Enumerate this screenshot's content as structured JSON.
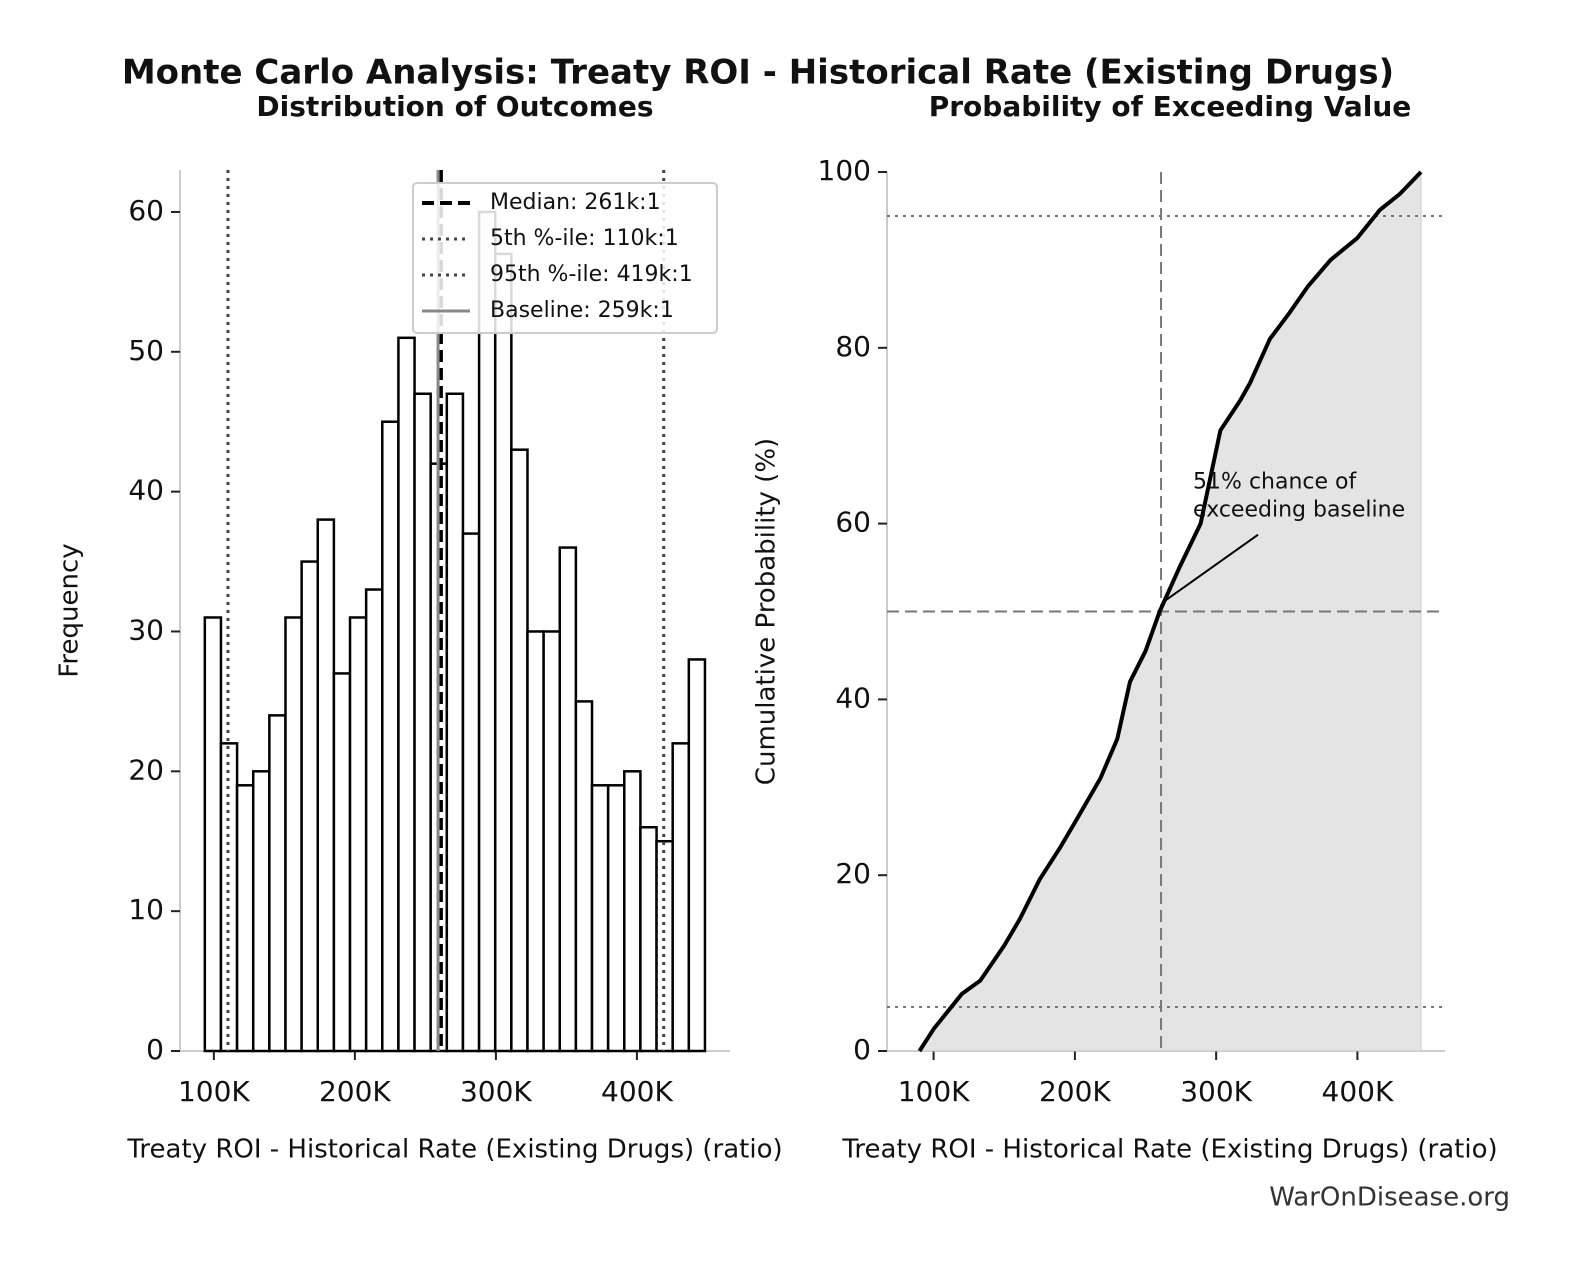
{
  "title": "Monte Carlo Analysis: Treaty ROI - Historical Rate (Existing Drugs)",
  "footer": "WarOnDisease.org",
  "chart_data": [
    {
      "type": "histogram",
      "title": "Distribution of Outcomes",
      "xlabel": "Treaty ROI - Historical Rate (Existing Drugs) (ratio)",
      "ylabel": "Frequency",
      "bins": [
        93600,
        105040,
        116480,
        127920,
        139360,
        150800,
        162240,
        173680,
        185120,
        196560,
        208000,
        219440,
        230880,
        242320,
        253760,
        265200,
        276640,
        288080,
        299520,
        310960,
        322400,
        333840,
        345280,
        356720,
        368160,
        379600,
        391040,
        402480,
        413920,
        425360,
        436800,
        448240
      ],
      "values": [
        31,
        22,
        19,
        20,
        24,
        31,
        35,
        38,
        27,
        31,
        33,
        45,
        51,
        47,
        42,
        47,
        37,
        60,
        57,
        43,
        30,
        30,
        36,
        25,
        19,
        19,
        20,
        16,
        15,
        22,
        28
      ],
      "color": "#ffffff",
      "edgecolor": "#000000",
      "xlim": [
        76000,
        466000
      ],
      "ylim": [
        0,
        63
      ],
      "xticks": [
        {
          "value": 100000,
          "label": "100K"
        },
        {
          "value": 200000,
          "label": "200K"
        },
        {
          "value": 300000,
          "label": "300K"
        },
        {
          "value": 400000,
          "label": "400K"
        }
      ],
      "yticks": [
        0,
        10,
        20,
        30,
        40,
        50,
        60
      ],
      "legend": "upper right",
      "reference_lines": [
        {
          "label": "Median: 261k:1",
          "value": 261000,
          "style": "dashed",
          "color": "#000000"
        },
        {
          "label": "5th %-ile: 110k:1",
          "value": 110000,
          "style": "dotted",
          "color": "#444444"
        },
        {
          "label": "95th %-ile: 419k:1",
          "value": 419000,
          "style": "dotted",
          "color": "#444444"
        },
        {
          "label": "Baseline: 259k:1",
          "value": 259000,
          "style": "solid",
          "color": "#888888"
        }
      ]
    },
    {
      "type": "line",
      "title": "Probability of Exceeding Value",
      "xlabel": "Treaty ROI - Historical Rate (Existing Drugs) (ratio)",
      "ylabel": "Cumulative Probability (%)",
      "x": [
        90000,
        100000,
        111000,
        120000,
        133000,
        150000,
        161000,
        175000,
        189000,
        200000,
        218000,
        230000,
        239000,
        250000,
        260000,
        274000,
        289000,
        303000,
        317000,
        324000,
        338000,
        352000,
        365000,
        381000,
        400000,
        416000,
        430000,
        445000
      ],
      "values": [
        0,
        2.5,
        4.7,
        6.5,
        8,
        12,
        15,
        19.5,
        23,
        26,
        31,
        35.5,
        42,
        45.5,
        50,
        55,
        60,
        70.6,
        74,
        76,
        81,
        84,
        87,
        90,
        92.5,
        95.7,
        97.5,
        100
      ],
      "color": "#000000",
      "fill": "#e4e4e4",
      "xlim": [
        67000,
        462000
      ],
      "ylim": [
        0,
        100
      ],
      "xticks": [
        {
          "value": 100000,
          "label": "100K"
        },
        {
          "value": 200000,
          "label": "200K"
        },
        {
          "value": 300000,
          "label": "300K"
        },
        {
          "value": 400000,
          "label": "400K"
        }
      ],
      "yticks": [
        0,
        20,
        40,
        60,
        80,
        100
      ],
      "hlines": [
        {
          "value": 95,
          "style": "dotted"
        },
        {
          "value": 50,
          "style": "dashed"
        },
        {
          "value": 5,
          "style": "dotted"
        }
      ],
      "vlines": [
        {
          "value": 261000,
          "style": "dashed"
        }
      ],
      "annotation": {
        "text": [
          "51% chance of",
          "exceeding baseline"
        ],
        "x": 261000,
        "y": 51
      }
    }
  ]
}
